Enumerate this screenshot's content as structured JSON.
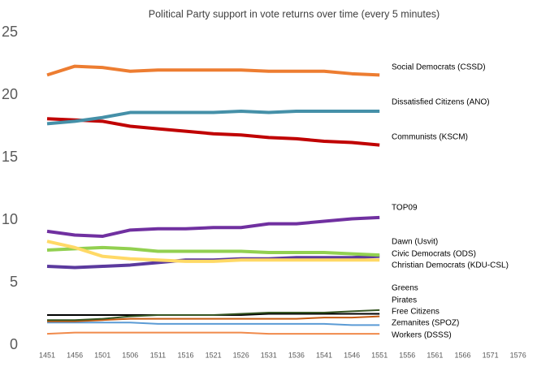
{
  "chart_data": {
    "type": "line",
    "title": "Political Party support in vote returns over time (every 5 minutes)",
    "categories": [
      "1451",
      "1456",
      "1501",
      "1506",
      "1511",
      "1516",
      "1521",
      "1526",
      "1531",
      "1536",
      "1541",
      "1546",
      "1551",
      "1556",
      "1561",
      "1566",
      "1571",
      "1576"
    ],
    "ylim": [
      0,
      25
    ],
    "yticks": [
      0,
      5,
      10,
      15,
      20,
      25
    ],
    "grid": false,
    "legend": "right",
    "series": [
      {
        "name": "Social Democrats (CSSD)",
        "color": "#ED7D31",
        "values": [
          21.6,
          22.3,
          22.2,
          21.9,
          22.0,
          22.0,
          22.0,
          22.0,
          21.9,
          21.9,
          21.9,
          21.7,
          21.6,
          null,
          null,
          null,
          null,
          null
        ]
      },
      {
        "name": "Dissatisfied Citizens (ANO)",
        "color": "#4590A8",
        "values": [
          17.7,
          17.9,
          18.2,
          18.6,
          18.6,
          18.6,
          18.6,
          18.7,
          18.6,
          18.7,
          18.7,
          18.7,
          18.7,
          null,
          null,
          null,
          null,
          null
        ]
      },
      {
        "name": "Communists (KSCM)",
        "color": "#C00000",
        "values": [
          18.1,
          18.0,
          17.9,
          17.5,
          17.3,
          17.1,
          16.9,
          16.8,
          16.6,
          16.5,
          16.3,
          16.2,
          16.0,
          null,
          null,
          null,
          null,
          null
        ]
      },
      {
        "name": "TOP09",
        "color": "#7030A0",
        "values": [
          9.1,
          8.8,
          8.7,
          9.2,
          9.3,
          9.3,
          9.4,
          9.4,
          9.7,
          9.7,
          9.9,
          10.1,
          10.2,
          null,
          null,
          null,
          null,
          null
        ]
      },
      {
        "name": "Dawn (Usvit)",
        "color": "#FFD966",
        "values": [
          8.3,
          7.8,
          7.1,
          6.9,
          6.8,
          6.7,
          6.7,
          6.8,
          6.8,
          6.8,
          6.8,
          6.8,
          6.8,
          null,
          null,
          null,
          null,
          null
        ]
      },
      {
        "name": "Civic Democrats (ODS)",
        "color": "#92D050",
        "values": [
          7.6,
          7.7,
          7.8,
          7.7,
          7.5,
          7.5,
          7.5,
          7.5,
          7.4,
          7.4,
          7.4,
          7.3,
          7.2,
          null,
          null,
          null,
          null,
          null
        ]
      },
      {
        "name": "Christian Democrats (KDU-CSL)",
        "color": "#5B3A9E",
        "values": [
          6.3,
          6.2,
          6.3,
          6.4,
          6.6,
          6.8,
          6.8,
          6.9,
          6.9,
          7.0,
          7.0,
          7.0,
          7.1,
          null,
          null,
          null,
          null,
          null
        ]
      },
      {
        "name": "Greens",
        "color": "#375623",
        "values": [
          2.0,
          2.0,
          2.1,
          2.3,
          2.4,
          2.4,
          2.4,
          2.5,
          2.6,
          2.6,
          2.6,
          2.7,
          2.8,
          null,
          null,
          null,
          null,
          null
        ]
      },
      {
        "name": "Pirates",
        "color": "#000000",
        "values": [
          2.4,
          2.4,
          2.4,
          2.4,
          2.4,
          2.4,
          2.4,
          2.4,
          2.5,
          2.5,
          2.5,
          2.5,
          2.5,
          null,
          null,
          null,
          null,
          null
        ]
      },
      {
        "name": "Free Citizens",
        "color": "#C55A11",
        "values": [
          1.9,
          1.9,
          2.0,
          2.1,
          2.1,
          2.1,
          2.1,
          2.1,
          2.1,
          2.1,
          2.2,
          2.2,
          2.3,
          null,
          null,
          null,
          null,
          null
        ]
      },
      {
        "name": "Zemanites (SPOZ)",
        "color": "#5B9BD5",
        "values": [
          1.8,
          1.8,
          1.8,
          1.8,
          1.7,
          1.7,
          1.7,
          1.7,
          1.7,
          1.7,
          1.7,
          1.6,
          1.6,
          null,
          null,
          null,
          null,
          null
        ]
      },
      {
        "name": "Workers (DSSS)",
        "color": "#F08A4B",
        "values": [
          0.9,
          1.0,
          1.0,
          1.0,
          1.0,
          1.0,
          1.0,
          1.0,
          0.9,
          0.9,
          0.9,
          0.9,
          0.9,
          null,
          null,
          null,
          null,
          null
        ]
      }
    ]
  }
}
